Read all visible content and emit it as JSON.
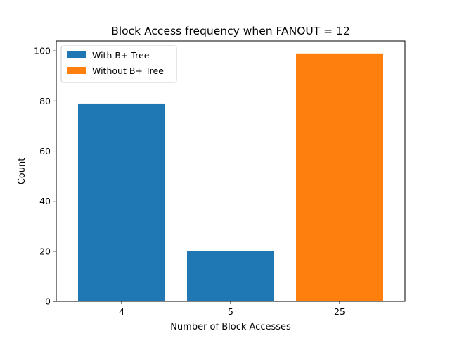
{
  "chart_data": {
    "type": "bar",
    "title": "Block Access frequency when FANOUT = 12",
    "xlabel": "Number of Block Accesses",
    "ylabel": "Count",
    "categories": [
      "4",
      "5",
      "25"
    ],
    "series": [
      {
        "name": "With B+ Tree",
        "color": "#1f77b4",
        "values": [
          79,
          20,
          null
        ]
      },
      {
        "name": "Without B+ Tree",
        "color": "#ff7f0e",
        "values": [
          null,
          null,
          99
        ]
      }
    ],
    "ylim": [
      0,
      104
    ],
    "yticks": [
      0,
      20,
      40,
      60,
      80,
      100
    ],
    "grid": false,
    "legend_position": "upper-left"
  }
}
